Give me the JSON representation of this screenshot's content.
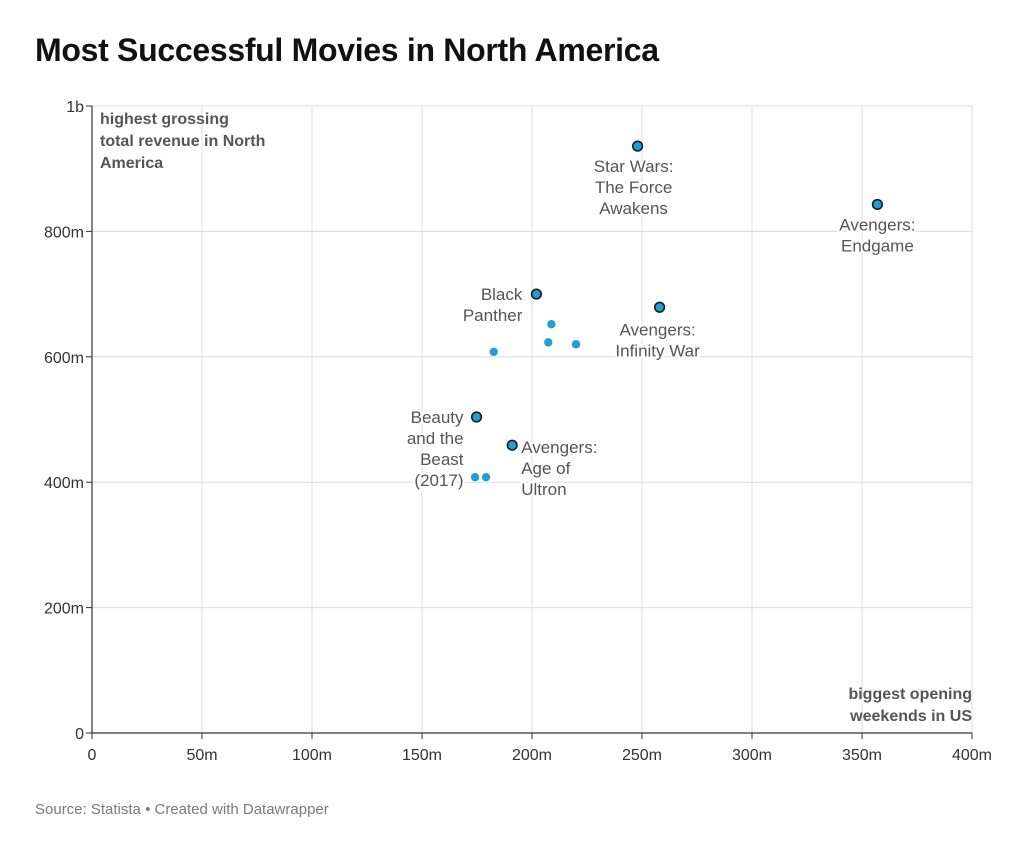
{
  "title": "Most Successful Movies in North America",
  "footer": {
    "source_prefix": "Source: ",
    "source_name": "Statista",
    "separator": " • ",
    "credit_prefix": "Created with ",
    "credit_name": "Datawrapper"
  },
  "chart_data": {
    "type": "scatter",
    "title": "Most Successful Movies in North America",
    "xlabel": "biggest opening weekends in US",
    "ylabel": "highest grossing total revenue in North America",
    "xlim": [
      0,
      400
    ],
    "ylim": [
      0,
      1000
    ],
    "x_unit": "m",
    "y_unit": "m",
    "x_ticks": [
      0,
      50,
      100,
      150,
      200,
      250,
      300,
      350,
      400
    ],
    "x_tick_labels": [
      "0",
      "50m",
      "100m",
      "150m",
      "200m",
      "250m",
      "300m",
      "350m",
      "400m"
    ],
    "y_ticks": [
      0,
      200,
      400,
      600,
      800,
      1000
    ],
    "y_tick_labels": [
      "0",
      "200m",
      "400m",
      "600m",
      "800m",
      "1b"
    ],
    "grid": true,
    "colors": {
      "point_fill": "#1f9fd4",
      "point_stroke": "#1a1a1a",
      "grid": "#dcdcdc",
      "axis": "#333333",
      "label": "#555555"
    },
    "points": [
      {
        "x": 248,
        "y": 936,
        "label": [
          "Star Wars:",
          "The Force",
          "Awakens"
        ],
        "highlight": true
      },
      {
        "x": 357,
        "y": 843,
        "label": [
          "Avengers:",
          "Endgame"
        ],
        "highlight": true
      },
      {
        "x": 202,
        "y": 700,
        "label": [
          "Black",
          "Panther"
        ],
        "highlight": true
      },
      {
        "x": 258,
        "y": 679,
        "label": [
          "Avengers:",
          "Infinity War"
        ],
        "highlight": true
      },
      {
        "x": 174.8,
        "y": 504,
        "label": [
          "Beauty",
          "and the",
          "Beast",
          "(2017)"
        ],
        "highlight": true
      },
      {
        "x": 191,
        "y": 459,
        "label": [
          "Avengers:",
          "Age of",
          "Ultron"
        ],
        "highlight": true
      },
      {
        "x": 208.8,
        "y": 652,
        "label": [],
        "highlight": false
      },
      {
        "x": 207.4,
        "y": 623,
        "label": [],
        "highlight": false
      },
      {
        "x": 220,
        "y": 620,
        "label": [],
        "highlight": false
      },
      {
        "x": 182.6,
        "y": 608,
        "label": [],
        "highlight": false
      },
      {
        "x": 174.1,
        "y": 408,
        "label": [],
        "highlight": false
      },
      {
        "x": 179.1,
        "y": 408,
        "label": [],
        "highlight": false
      }
    ],
    "annotations": {
      "y_axis_title": [
        "highest grossing",
        "total revenue in North",
        "America"
      ],
      "x_axis_title": [
        "biggest opening",
        "weekends in US"
      ]
    }
  }
}
